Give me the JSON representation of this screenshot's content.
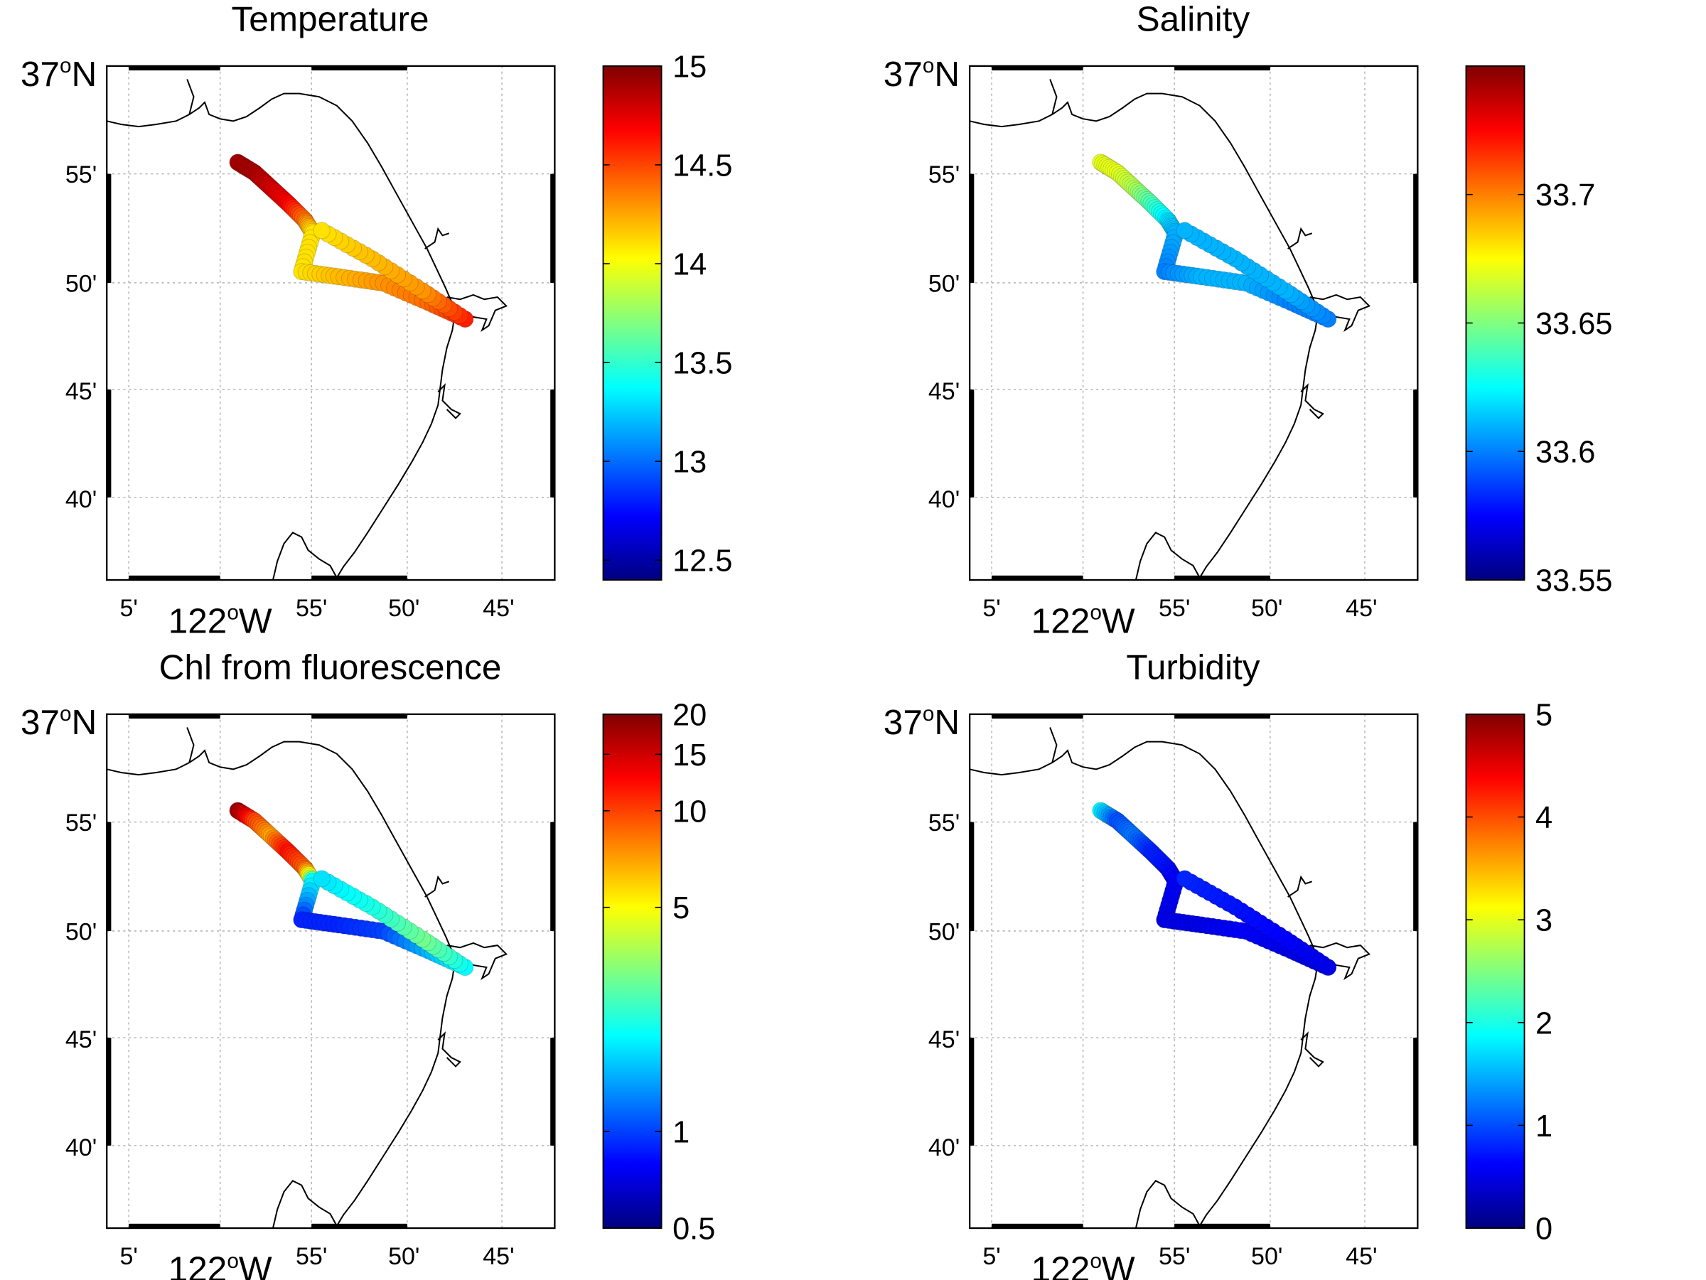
{
  "figure": {
    "layout": "2x2 map panels with colorbars",
    "coastline_color": "#000000",
    "grid_style": "dotted gray",
    "colormap": "jet",
    "colormap_stops": [
      "#000080",
      "#0000ff",
      "#0080ff",
      "#00ffff",
      "#80ff80",
      "#ffff00",
      "#ff8000",
      "#ff0000",
      "#800000"
    ]
  },
  "chart_data": [
    {
      "type": "scatter",
      "title": "Temperature",
      "x_ticks": [
        "5'",
        "122°W",
        "55'",
        "50'",
        "45'"
      ],
      "y_ticks": [
        "37°N",
        "55'",
        "50'",
        "45'",
        "40'"
      ],
      "xlim": [
        -122.117,
        -121.717
      ],
      "ylim": [
        36.6,
        37.0
      ],
      "grid": true,
      "colorbar": {
        "scale": "linear",
        "range": [
          12.4,
          15.0
        ],
        "ticks": [
          "15",
          "14.5",
          "14",
          "13.5",
          "13",
          "12.5"
        ],
        "tick_values": [
          15,
          14.5,
          14,
          13.5,
          13,
          12.5
        ]
      },
      "track": [
        {
          "lon": -122.0,
          "lat": 36.925,
          "value": 14.9
        },
        {
          "lon": -121.985,
          "lat": 36.917,
          "value": 14.9
        },
        {
          "lon": -121.97,
          "lat": 36.905,
          "value": 14.8
        },
        {
          "lon": -121.955,
          "lat": 36.893,
          "value": 14.7
        },
        {
          "lon": -121.94,
          "lat": 36.88,
          "value": 14.4
        },
        {
          "lon": -121.933,
          "lat": 36.87,
          "value": 14.1
        },
        {
          "lon": -121.943,
          "lat": 36.84,
          "value": 14.1
        },
        {
          "lon": -121.91,
          "lat": 36.836,
          "value": 14.2
        },
        {
          "lon": -121.87,
          "lat": 36.831,
          "value": 14.3
        },
        {
          "lon": -121.83,
          "lat": 36.816,
          "value": 14.4
        },
        {
          "lon": -121.797,
          "lat": 36.803,
          "value": 14.6
        },
        {
          "lon": -121.835,
          "lat": 36.825,
          "value": 14.3
        },
        {
          "lon": -121.88,
          "lat": 36.85,
          "value": 14.2
        },
        {
          "lon": -121.925,
          "lat": 36.872,
          "value": 14.1
        }
      ]
    },
    {
      "type": "scatter",
      "title": "Salinity",
      "x_ticks": [
        "5'",
        "122°W",
        "55'",
        "50'",
        "45'"
      ],
      "y_ticks": [
        "37°N",
        "55'",
        "50'",
        "45'",
        "40'"
      ],
      "xlim": [
        -122.117,
        -121.717
      ],
      "ylim": [
        36.6,
        37.0
      ],
      "grid": true,
      "colorbar": {
        "scale": "linear",
        "range": [
          33.55,
          33.75
        ],
        "ticks": [
          "33.7",
          "33.65",
          "33.6",
          "33.55"
        ],
        "tick_values": [
          33.7,
          33.65,
          33.6,
          33.55
        ]
      },
      "track": [
        {
          "lon": -122.0,
          "lat": 36.925,
          "value": 33.67
        },
        {
          "lon": -121.985,
          "lat": 36.917,
          "value": 33.67
        },
        {
          "lon": -121.97,
          "lat": 36.905,
          "value": 33.66
        },
        {
          "lon": -121.955,
          "lat": 36.893,
          "value": 33.64
        },
        {
          "lon": -121.94,
          "lat": 36.88,
          "value": 33.62
        },
        {
          "lon": -121.933,
          "lat": 36.87,
          "value": 33.61
        },
        {
          "lon": -121.943,
          "lat": 36.84,
          "value": 33.6
        },
        {
          "lon": -121.91,
          "lat": 36.836,
          "value": 33.61
        },
        {
          "lon": -121.87,
          "lat": 36.831,
          "value": 33.61
        },
        {
          "lon": -121.83,
          "lat": 36.816,
          "value": 33.6
        },
        {
          "lon": -121.797,
          "lat": 36.803,
          "value": 33.6
        },
        {
          "lon": -121.835,
          "lat": 36.825,
          "value": 33.61
        },
        {
          "lon": -121.88,
          "lat": 36.85,
          "value": 33.61
        },
        {
          "lon": -121.925,
          "lat": 36.872,
          "value": 33.61
        }
      ]
    },
    {
      "type": "scatter",
      "title": "Chl from fluorescence",
      "x_ticks": [
        "5'",
        "122°W",
        "55'",
        "50'",
        "45'"
      ],
      "y_ticks": [
        "37°N",
        "55'",
        "50'",
        "45'",
        "40'"
      ],
      "xlim": [
        -122.117,
        -121.717
      ],
      "ylim": [
        36.6,
        37.0
      ],
      "grid": true,
      "colorbar": {
        "scale": "log",
        "range": [
          0.5,
          20
        ],
        "ticks": [
          "20",
          "15",
          "10",
          "5",
          "1",
          "0.5"
        ],
        "tick_values": [
          20,
          15,
          10,
          5,
          1,
          0.5
        ]
      },
      "track": [
        {
          "lon": -122.0,
          "lat": 36.925,
          "value": 18
        },
        {
          "lon": -121.985,
          "lat": 36.917,
          "value": 10
        },
        {
          "lon": -121.97,
          "lat": 36.905,
          "value": 7
        },
        {
          "lon": -121.955,
          "lat": 36.893,
          "value": 12
        },
        {
          "lon": -121.94,
          "lat": 36.88,
          "value": 9
        },
        {
          "lon": -121.933,
          "lat": 36.87,
          "value": 2
        },
        {
          "lon": -121.943,
          "lat": 36.84,
          "value": 0.9
        },
        {
          "lon": -121.91,
          "lat": 36.836,
          "value": 0.9
        },
        {
          "lon": -121.87,
          "lat": 36.831,
          "value": 1.0
        },
        {
          "lon": -121.83,
          "lat": 36.816,
          "value": 1.5
        },
        {
          "lon": -121.797,
          "lat": 36.803,
          "value": 2.0
        },
        {
          "lon": -121.835,
          "lat": 36.825,
          "value": 3
        },
        {
          "lon": -121.88,
          "lat": 36.85,
          "value": 2.2
        },
        {
          "lon": -121.925,
          "lat": 36.872,
          "value": 1.8
        }
      ]
    },
    {
      "type": "scatter",
      "title": "Turbidity",
      "x_ticks": [
        "5'",
        "122°W",
        "55'",
        "50'",
        "45'"
      ],
      "y_ticks": [
        "37°N",
        "55'",
        "50'",
        "45'",
        "40'"
      ],
      "xlim": [
        -122.117,
        -121.717
      ],
      "ylim": [
        36.6,
        37.0
      ],
      "grid": true,
      "colorbar": {
        "scale": "linear",
        "range": [
          0,
          5
        ],
        "ticks": [
          "5",
          "4",
          "3",
          "2",
          "1",
          "0"
        ],
        "tick_values": [
          5,
          4,
          3,
          2,
          1,
          0
        ]
      },
      "track": [
        {
          "lon": -122.0,
          "lat": 36.925,
          "value": 1.8
        },
        {
          "lon": -121.985,
          "lat": 36.917,
          "value": 1.0
        },
        {
          "lon": -121.97,
          "lat": 36.905,
          "value": 1.2
        },
        {
          "lon": -121.955,
          "lat": 36.893,
          "value": 0.8
        },
        {
          "lon": -121.94,
          "lat": 36.88,
          "value": 0.7
        },
        {
          "lon": -121.933,
          "lat": 36.87,
          "value": 0.6
        },
        {
          "lon": -121.943,
          "lat": 36.84,
          "value": 0.5
        },
        {
          "lon": -121.91,
          "lat": 36.836,
          "value": 0.5
        },
        {
          "lon": -121.87,
          "lat": 36.831,
          "value": 0.6
        },
        {
          "lon": -121.83,
          "lat": 36.816,
          "value": 0.5
        },
        {
          "lon": -121.797,
          "lat": 36.803,
          "value": 0.5
        },
        {
          "lon": -121.835,
          "lat": 36.825,
          "value": 0.6
        },
        {
          "lon": -121.88,
          "lat": 36.85,
          "value": 0.7
        },
        {
          "lon": -121.925,
          "lat": 36.872,
          "value": 0.8
        }
      ]
    }
  ]
}
